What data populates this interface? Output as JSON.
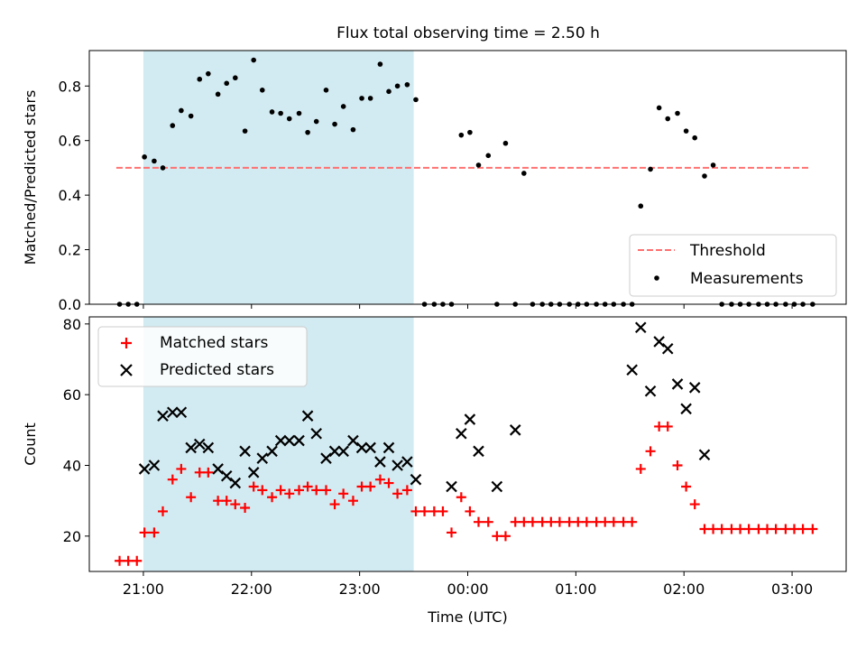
{
  "title": "Flux total observing time = 2.50 h",
  "colors": {
    "shade": "#add8e6",
    "threshold": "#ff7070",
    "measurements": "#000000",
    "matched": "#ff0000",
    "predicted": "#000000"
  },
  "chart_data": [
    {
      "type": "scatter",
      "ylabel": "Matched/Predicted stars",
      "ylim": [
        0,
        0.93
      ],
      "yticks": [
        "0.0",
        "0.2",
        "0.4",
        "0.6",
        "0.8"
      ],
      "ytick_values": [
        0,
        0.2,
        0.4,
        0.6,
        0.8
      ],
      "xlim_hours": [
        20.5,
        27.5
      ],
      "shaded_interval_hours": [
        21.0,
        23.5
      ],
      "threshold": {
        "name": "Threshold",
        "y": 0.5,
        "x_range_hours": [
          20.75,
          27.15
        ]
      },
      "legend": {
        "position": "lower right",
        "entries": [
          "Threshold",
          "Measurements"
        ]
      },
      "series": [
        {
          "name": "Measurements",
          "x_hours": [
            20.78,
            20.86,
            20.94,
            21.01,
            21.1,
            21.18,
            21.27,
            21.35,
            21.44,
            21.52,
            21.6,
            21.69,
            21.77,
            21.85,
            21.94,
            22.02,
            22.1,
            22.19,
            22.27,
            22.35,
            22.44,
            22.52,
            22.6,
            22.69,
            22.77,
            22.85,
            22.94,
            23.02,
            23.1,
            23.19,
            23.27,
            23.35,
            23.44,
            23.52,
            23.6,
            23.69,
            23.77,
            23.85,
            23.94,
            24.02,
            24.1,
            24.19,
            24.27,
            24.35,
            24.44,
            24.52,
            24.6,
            24.69,
            24.77,
            24.85,
            24.94,
            25.02,
            25.1,
            25.19,
            25.27,
            25.35,
            25.44,
            25.52,
            25.6,
            25.69,
            25.77,
            25.85,
            25.94,
            26.02,
            26.1,
            26.19,
            26.27,
            26.35,
            26.44,
            26.52,
            26.6,
            26.69,
            26.77,
            26.85,
            26.94,
            27.02,
            27.1,
            27.19
          ],
          "y": [
            0,
            0,
            0,
            0.54,
            0.525,
            0.5,
            0.655,
            0.71,
            0.69,
            0.825,
            0.845,
            0.77,
            0.81,
            0.83,
            0.635,
            0.895,
            0.785,
            0.705,
            0.7,
            0.68,
            0.7,
            0.63,
            0.67,
            0.785,
            0.66,
            0.725,
            0.64,
            0.755,
            0.755,
            0.88,
            0.78,
            0.8,
            0.805,
            0.75,
            0,
            0,
            0,
            0,
            0.62,
            0.63,
            0.51,
            0.545,
            0,
            0.59,
            0,
            0.48,
            0,
            0,
            0,
            0,
            0,
            0,
            0,
            0,
            0,
            0,
            0,
            0,
            0.36,
            0.495,
            0.72,
            0.68,
            0.7,
            0.635,
            0.61,
            0.47,
            0.51,
            0,
            0,
            0,
            0,
            0,
            0,
            0,
            0,
            0,
            0,
            0
          ]
        }
      ]
    },
    {
      "type": "scatter",
      "ylabel": "Count",
      "xlabel": "Time (UTC)",
      "ylim": [
        10,
        82
      ],
      "yticks": [
        "20",
        "40",
        "60",
        "80"
      ],
      "ytick_values": [
        20,
        40,
        60,
        80
      ],
      "xlim_hours": [
        20.5,
        27.5
      ],
      "xtick_hours": [
        21,
        22,
        23,
        24,
        25,
        26,
        27
      ],
      "xticks": [
        "21:00",
        "22:00",
        "23:00",
        "00:00",
        "01:00",
        "02:00",
        "03:00"
      ],
      "shaded_interval_hours": [
        21.0,
        23.5
      ],
      "legend": {
        "position": "upper left",
        "entries": [
          "Matched stars",
          "Predicted stars"
        ]
      },
      "series": [
        {
          "name": "Matched stars",
          "marker": "+",
          "x_hours": [
            20.78,
            20.86,
            20.94,
            21.01,
            21.1,
            21.18,
            21.27,
            21.35,
            21.44,
            21.52,
            21.6,
            21.69,
            21.77,
            21.85,
            21.94,
            22.02,
            22.1,
            22.19,
            22.27,
            22.35,
            22.44,
            22.52,
            22.6,
            22.69,
            22.77,
            22.85,
            22.94,
            23.02,
            23.1,
            23.19,
            23.27,
            23.35,
            23.44,
            23.52,
            23.6,
            23.69,
            23.77,
            23.85,
            23.94,
            24.02,
            24.1,
            24.19,
            24.27,
            24.35,
            24.44,
            24.52,
            24.6,
            24.69,
            24.77,
            24.85,
            24.94,
            25.02,
            25.1,
            25.19,
            25.27,
            25.35,
            25.44,
            25.52,
            25.6,
            25.69,
            25.77,
            25.85,
            25.94,
            26.02,
            26.1,
            26.19,
            26.27,
            26.35,
            26.44,
            26.52,
            26.6,
            26.69,
            26.77,
            26.85,
            26.94,
            27.02,
            27.1,
            27.19
          ],
          "y": [
            13,
            13,
            13,
            21,
            21,
            27,
            36,
            39,
            31,
            38,
            38,
            30,
            30,
            29,
            28,
            34,
            33,
            31,
            33,
            32,
            33,
            34,
            33,
            33,
            29,
            32,
            30,
            34,
            34,
            36,
            35,
            32,
            33,
            27,
            27,
            27,
            27,
            21,
            31,
            27,
            24,
            24,
            20,
            20,
            24,
            24,
            24,
            24,
            24,
            24,
            24,
            24,
            24,
            24,
            24,
            24,
            24,
            24,
            39,
            44,
            51,
            51,
            40,
            34,
            29,
            22,
            22,
            22,
            22,
            22,
            22,
            22,
            22,
            22,
            22,
            22,
            22,
            22
          ]
        },
        {
          "name": "Predicted stars",
          "marker": "x",
          "x_hours": [
            21.01,
            21.1,
            21.18,
            21.27,
            21.35,
            21.44,
            21.52,
            21.6,
            21.69,
            21.77,
            21.85,
            21.94,
            22.02,
            22.1,
            22.19,
            22.27,
            22.35,
            22.44,
            22.52,
            22.6,
            22.69,
            22.77,
            22.85,
            22.94,
            23.02,
            23.1,
            23.19,
            23.27,
            23.35,
            23.44,
            23.52,
            23.85,
            23.94,
            24.02,
            24.1,
            24.27,
            24.44,
            25.52,
            25.6,
            25.69,
            25.77,
            25.85,
            25.94,
            26.02,
            26.1,
            26.19
          ],
          "y": [
            39,
            40,
            54,
            55,
            55,
            45,
            46,
            45,
            39,
            37,
            35,
            44,
            38,
            42,
            44,
            47,
            47,
            47,
            54,
            49,
            42,
            44,
            44,
            47,
            45,
            45,
            41,
            45,
            40,
            41,
            36,
            34,
            49,
            53,
            44,
            34,
            50,
            67,
            79,
            61,
            75,
            73,
            63,
            56,
            62,
            43
          ]
        }
      ]
    }
  ]
}
